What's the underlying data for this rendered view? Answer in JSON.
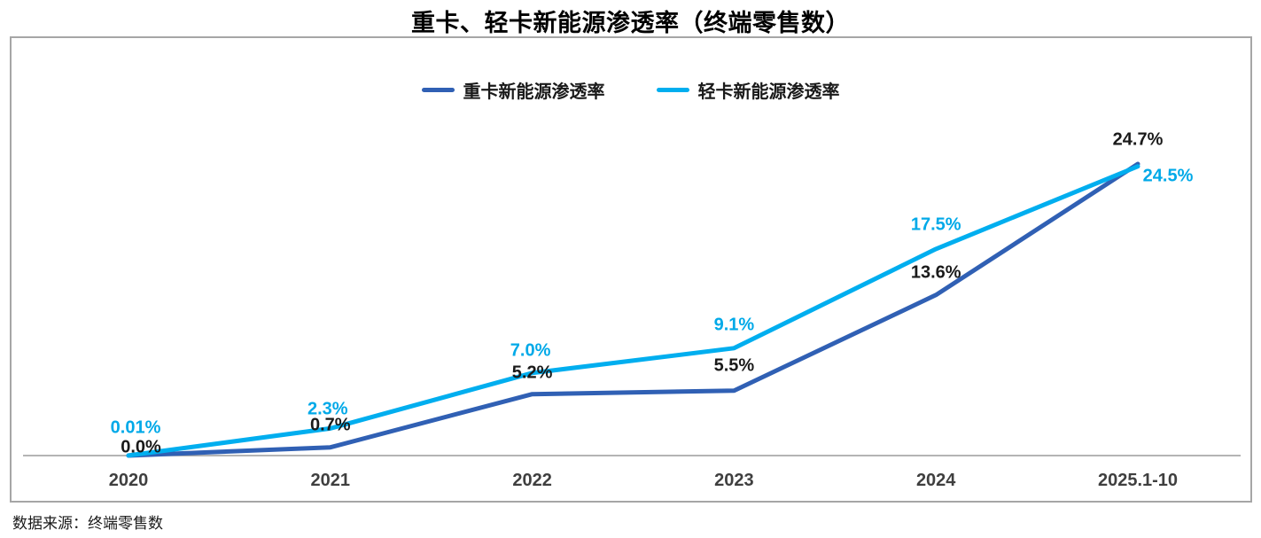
{
  "title": "重卡、轻卡新能源渗透率（终端零售数）",
  "source_note": "数据来源：终端零售数",
  "legend": {
    "items": [
      {
        "label": "重卡新能源渗透率",
        "color": "#3060b4"
      },
      {
        "label": "轻卡新能源渗透率",
        "color": "#00aeef"
      }
    ]
  },
  "colors": {
    "heavy_truck_line": "#3060b4",
    "light_truck_line": "#00aeef",
    "heavy_truck_label": "#1a1a1a",
    "light_truck_label": "#00a9e8",
    "axis_line": "#9b9b9b",
    "box_border": "#a6a6a6",
    "tick_text": "#3f3f3f"
  },
  "chart_data": {
    "type": "line",
    "title": "重卡、轻卡新能源渗透率（终端零售数）",
    "categories": [
      "2020",
      "2021",
      "2022",
      "2023",
      "2024",
      "2025.1-10"
    ],
    "series": [
      {
        "name": "重卡新能源渗透率",
        "color": "#3060b4",
        "label_color": "#1a1a1a",
        "values": [
          0.0,
          0.7,
          5.2,
          5.5,
          13.6,
          24.7
        ],
        "labels": [
          "0.0%",
          "0.7%",
          "5.2%",
          "5.5%",
          "13.6%",
          "24.7%"
        ]
      },
      {
        "name": "轻卡新能源渗透率",
        "color": "#00aeef",
        "label_color": "#00a9e8",
        "values": [
          0.01,
          2.3,
          7.0,
          9.1,
          17.5,
          24.5
        ],
        "labels": [
          "0.01%",
          "2.3%",
          "7.0%",
          "9.1%",
          "17.5%",
          "24.5%"
        ]
      }
    ],
    "xlabel": "",
    "ylabel": "",
    "ylim": [
      0,
      26
    ],
    "grid": false,
    "legend_position": "top",
    "data_labels": true
  }
}
